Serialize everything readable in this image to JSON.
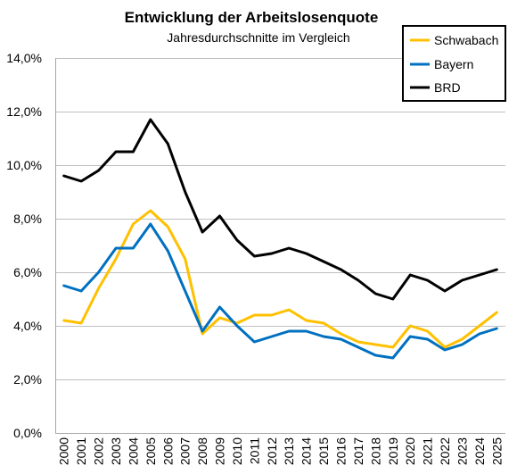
{
  "chart_data": {
    "type": "line",
    "title": "Entwicklung der Arbeitslosenquote",
    "subtitle": "Jahresdurchschnitte im Vergleich",
    "categories": [
      "2000",
      "2001",
      "2002",
      "2003",
      "2004",
      "2005",
      "2006",
      "2007",
      "2008",
      "2009",
      "2010",
      "2011",
      "2012",
      "2013",
      "2014",
      "2015",
      "2016",
      "2017",
      "2018",
      "2019",
      "2020",
      "2021",
      "2022",
      "2023",
      "2024",
      "2025"
    ],
    "ylim": [
      0,
      14
    ],
    "yticks": [
      0,
      2,
      4,
      6,
      8,
      10,
      12,
      14
    ],
    "ytick_labels": [
      "0,0%",
      "2,0%",
      "4,0%",
      "6,0%",
      "8,0%",
      "10,0%",
      "12,0%",
      "14,0%"
    ],
    "grid": true,
    "legend": "top-right",
    "series": [
      {
        "name": "Schwabach",
        "color": "#FFC000",
        "values": [
          4.2,
          4.1,
          5.4,
          6.5,
          7.8,
          8.3,
          7.7,
          6.5,
          3.7,
          4.3,
          4.1,
          4.4,
          4.4,
          4.6,
          4.2,
          4.1,
          3.7,
          3.4,
          3.3,
          3.2,
          4.0,
          3.8,
          3.2,
          3.5,
          4.0,
          4.5
        ]
      },
      {
        "name": "Bayern",
        "color": "#0070C0",
        "values": [
          5.5,
          5.3,
          6.0,
          6.9,
          6.9,
          7.8,
          6.8,
          5.3,
          3.8,
          4.7,
          4.0,
          3.4,
          3.6,
          3.8,
          3.8,
          3.6,
          3.5,
          3.2,
          2.9,
          2.8,
          3.6,
          3.5,
          3.1,
          3.3,
          3.7,
          3.9
        ]
      },
      {
        "name": "BRD",
        "color": "#000000",
        "values": [
          9.6,
          9.4,
          9.8,
          10.5,
          10.5,
          11.7,
          10.8,
          9.0,
          7.5,
          8.1,
          7.2,
          6.6,
          6.7,
          6.9,
          6.7,
          6.4,
          6.1,
          5.7,
          5.2,
          5.0,
          5.9,
          5.7,
          5.3,
          5.7,
          5.9,
          6.1
        ]
      }
    ]
  }
}
